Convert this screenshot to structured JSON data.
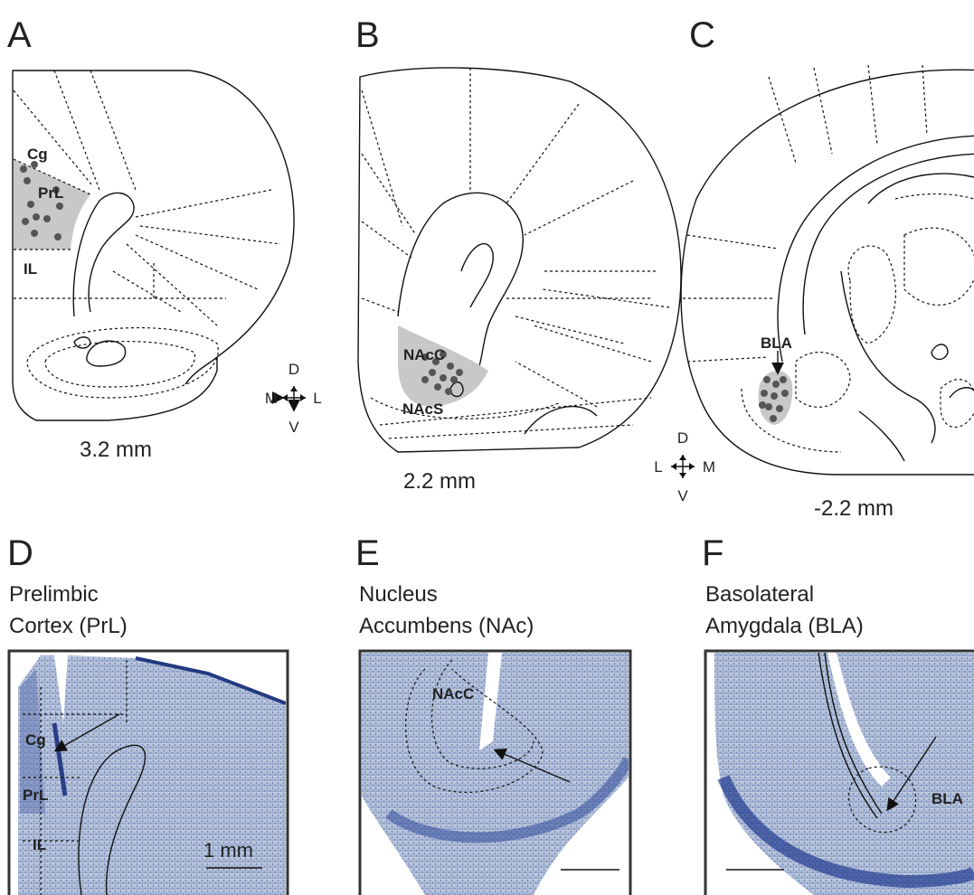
{
  "panels": [
    {
      "letter": "A",
      "regions": [
        "Cg",
        "PrL",
        "IL"
      ],
      "level": "3.2 mm",
      "compass": [
        "D",
        "M",
        "L",
        "V"
      ]
    },
    {
      "letter": "B",
      "regions": [
        "NAcC",
        "NAcS"
      ],
      "level": "2.2 mm"
    },
    {
      "letter": "C",
      "regions": [
        "BLA"
      ],
      "level": "-2.2 mm",
      "compass": [
        "D",
        "L",
        "M",
        "V"
      ]
    },
    {
      "letter": "D",
      "caption": [
        "Prelimbic",
        "Cortex (PrL)"
      ],
      "regions": [
        "Cg",
        "PrL",
        "IL"
      ],
      "scale_bar": "1 mm"
    },
    {
      "letter": "E",
      "caption": [
        "Nucleus",
        "Accumbens (NAc)"
      ],
      "regions": [
        "NAcC"
      ]
    },
    {
      "letter": "F",
      "caption": [
        "Basolateral",
        "Amygdala (BLA)"
      ],
      "regions": [
        "BLA"
      ]
    }
  ]
}
